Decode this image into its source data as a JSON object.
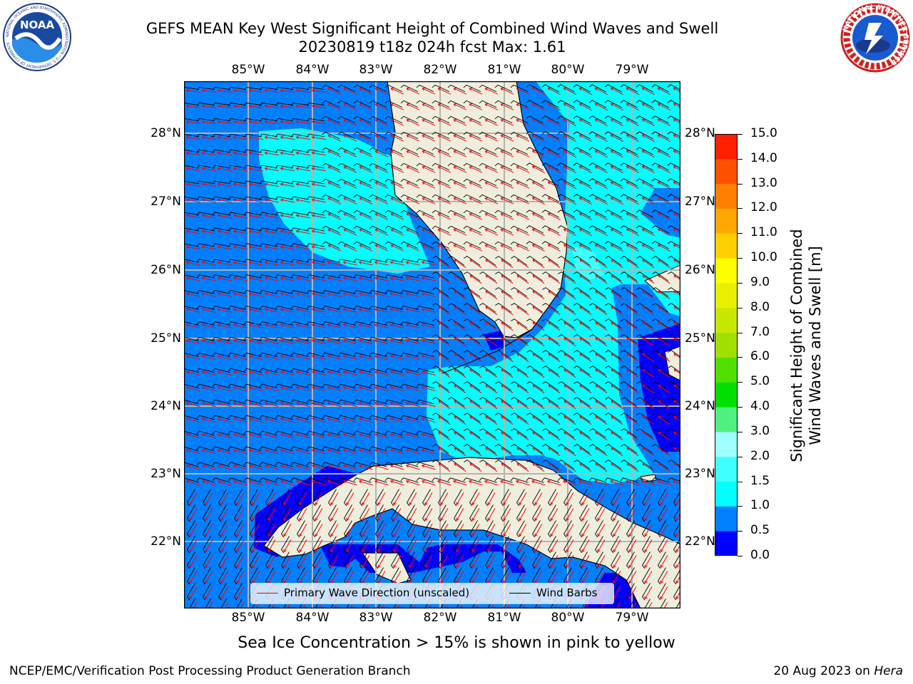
{
  "header": {
    "title_line1": "GEFS MEAN Key West Significant Height of Combined Wind Waves and Swell",
    "title_line2": "20230819 t18z 024h fcst   Max: 1.61"
  },
  "logos": {
    "noaa": {
      "text": "NOAA",
      "ring_text": "NATIONAL OCEANIC AND ATMOSPHERIC ADMINISTRATION • U.S. DEPARTMENT OF COMMERCE"
    },
    "nws": {
      "ring_text": "NATIONAL WEATHER SERVICE"
    }
  },
  "map": {
    "lon_labels": [
      "85°W",
      "84°W",
      "83°W",
      "82°W",
      "81°W",
      "80°W",
      "79°W"
    ],
    "lat_labels": [
      "28°N",
      "27°N",
      "26°N",
      "25°N",
      "24°N",
      "23°N",
      "22°N"
    ],
    "colors": {
      "land": "#efeedd",
      "coast": "#000000",
      "grid": "#b4b4b4",
      "wave_arrow": "#ff0000",
      "wind_barb": "#000000",
      "band_0_0_5": "#0000ff",
      "band_0_5_1_0": "#0080ff",
      "band_1_0_1_5": "#00ffff",
      "band_1_5_2_0": "#40ffff"
    }
  },
  "legend": {
    "wave_label": "Primary Wave Direction (unscaled)",
    "barb_label": "Wind Barbs"
  },
  "colorbar": {
    "label_line1": "Significant Height of Combined",
    "label_line2": "Wind Waves and Swell [m]",
    "ticks": [
      "0.0",
      "0.5",
      "1.0",
      "1.5",
      "2.0",
      "3.0",
      "4.0",
      "5.0",
      "6.0",
      "7.0",
      "8.0",
      "9.0",
      "10.0",
      "11.0",
      "12.0",
      "13.0",
      "14.0",
      "15.0"
    ],
    "colors": [
      "#0000ff",
      "#0080ff",
      "#00ffff",
      "#40ffff",
      "#a0ffff",
      "#50f080",
      "#00e000",
      "#50e000",
      "#a0e000",
      "#c8e800",
      "#e8f000",
      "#ffff00",
      "#ffd000",
      "#ffa800",
      "#ff8000",
      "#ff5000",
      "#ff2000"
    ]
  },
  "footer": {
    "ice_note": "Sea Ice Concentration > 15% is shown in pink to yellow",
    "left": "NCEP/EMC/Verification Post Processing Product Generation Branch",
    "right_prefix": "20 Aug 2023 on ",
    "right_host": "Hera"
  }
}
